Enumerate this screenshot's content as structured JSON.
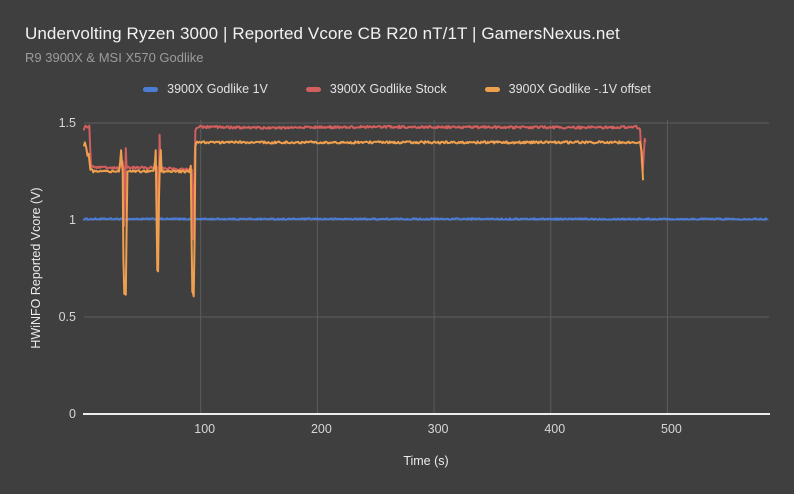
{
  "title": "Undervolting Ryzen 3000 | Reported Vcore CB R20 nT/1T | GamersNexus.net",
  "subtitle": "R9 3900X & MSI X570 Godlike",
  "colors": {
    "background": "#3f3f3f",
    "grid": "#5c5c5c",
    "baseline": "#ededed",
    "tick_text": "#d6d6d6",
    "title_text": "#f2f2f2",
    "subtitle_text": "#9c9c9c",
    "legend_text": "#e2e2e2",
    "axis_title_text": "#ececec",
    "series_blue": "#4d7cd6",
    "series_red": "#d25f5d",
    "series_orange": "#efa04f"
  },
  "chart_data": {
    "type": "line",
    "title": "Undervolting Ryzen 3000 | Reported Vcore CB R20 nT/1T | GamersNexus.net",
    "subtitle": "R9 3900X & MSI X570 Godlike",
    "xlabel": "Time (s)",
    "ylabel": "HWiNFO Reported Vcore (V)",
    "xlim": [
      0,
      587
    ],
    "ylim": [
      0,
      1.5
    ],
    "xticks": [
      100,
      200,
      300,
      400,
      500
    ],
    "yticks": [
      0,
      0.5,
      1,
      1.5
    ],
    "ytick_labels": [
      "0",
      "0.5",
      "1",
      "1.5"
    ],
    "grid": true,
    "legend_position": "top",
    "series": [
      {
        "name": "3900X Godlike 1V",
        "color": "#4d7cd6",
        "noise": 0.004,
        "points": [
          [
            0,
            1.005
          ],
          [
            585,
            1.005
          ]
        ]
      },
      {
        "name": "3900X Godlike Stock",
        "color": "#d25f5d",
        "noise": 0.006,
        "points": [
          [
            0,
            1.46
          ],
          [
            1,
            1.48
          ],
          [
            4.5,
            1.48
          ],
          [
            6,
            1.28
          ],
          [
            10,
            1.27
          ],
          [
            30,
            1.27
          ],
          [
            31.5,
            1.28
          ],
          [
            33,
            1.3
          ],
          [
            33.8,
            1.27
          ],
          [
            34.3,
            0.97
          ],
          [
            35,
            1.1
          ],
          [
            35.8,
            1.37
          ],
          [
            36.5,
            1.27
          ],
          [
            45,
            1.27
          ],
          [
            60,
            1.27
          ],
          [
            61.5,
            1.28
          ],
          [
            62.5,
            1.27
          ],
          [
            63.2,
            0.95
          ],
          [
            63.8,
            0.93
          ],
          [
            64.3,
            1.2
          ],
          [
            64.8,
            1.44
          ],
          [
            65.5,
            1.28
          ],
          [
            66,
            1.27
          ],
          [
            80,
            1.26
          ],
          [
            91,
            1.26
          ],
          [
            92.5,
            1.26
          ],
          [
            93.2,
            1.0
          ],
          [
            93.8,
            0.9
          ],
          [
            94.5,
            1.2
          ],
          [
            95.5,
            1.46
          ],
          [
            97,
            1.48
          ],
          [
            150,
            1.475
          ],
          [
            250,
            1.48
          ],
          [
            350,
            1.478
          ],
          [
            450,
            1.477
          ],
          [
            474,
            1.48
          ],
          [
            476.5,
            1.47
          ],
          [
            478,
            1.3
          ],
          [
            478.8,
            1.25
          ],
          [
            479.6,
            1.33
          ],
          [
            480.5,
            1.42
          ],
          [
            481,
            1.4
          ]
        ]
      },
      {
        "name": "3900X Godlike -.1V offset",
        "color": "#efa04f",
        "noise": 0.006,
        "points": [
          [
            0,
            1.38
          ],
          [
            0.8,
            1.4
          ],
          [
            2,
            1.37
          ],
          [
            3,
            1.33
          ],
          [
            4,
            1.34
          ],
          [
            5.5,
            1.26
          ],
          [
            8,
            1.25
          ],
          [
            30,
            1.25
          ],
          [
            31,
            1.3
          ],
          [
            31.8,
            1.36
          ],
          [
            32.5,
            1.3
          ],
          [
            33.2,
            1.25
          ],
          [
            33.8,
            0.8
          ],
          [
            34.5,
            0.62
          ],
          [
            35.8,
            0.61
          ],
          [
            36.5,
            0.95
          ],
          [
            37.2,
            1.25
          ],
          [
            45,
            1.25
          ],
          [
            59.5,
            1.25
          ],
          [
            60.8,
            1.3
          ],
          [
            61.4,
            1.36
          ],
          [
            62,
            1.1
          ],
          [
            62.8,
            0.74
          ],
          [
            63.5,
            0.73
          ],
          [
            64.2,
            1.1
          ],
          [
            65,
            1.3
          ],
          [
            65.8,
            1.36
          ],
          [
            66.5,
            1.25
          ],
          [
            80,
            1.25
          ],
          [
            90.5,
            1.25
          ],
          [
            91.5,
            1.28
          ],
          [
            92.2,
            0.9
          ],
          [
            92.8,
            0.63
          ],
          [
            94,
            0.61
          ],
          [
            94.8,
            0.9
          ],
          [
            95.5,
            1.38
          ],
          [
            96.5,
            1.4
          ],
          [
            150,
            1.4
          ],
          [
            250,
            1.4
          ],
          [
            350,
            1.4
          ],
          [
            450,
            1.4
          ],
          [
            474,
            1.4
          ],
          [
            476.5,
            1.4
          ],
          [
            477.8,
            1.35
          ],
          [
            479,
            1.21
          ]
        ]
      }
    ]
  }
}
